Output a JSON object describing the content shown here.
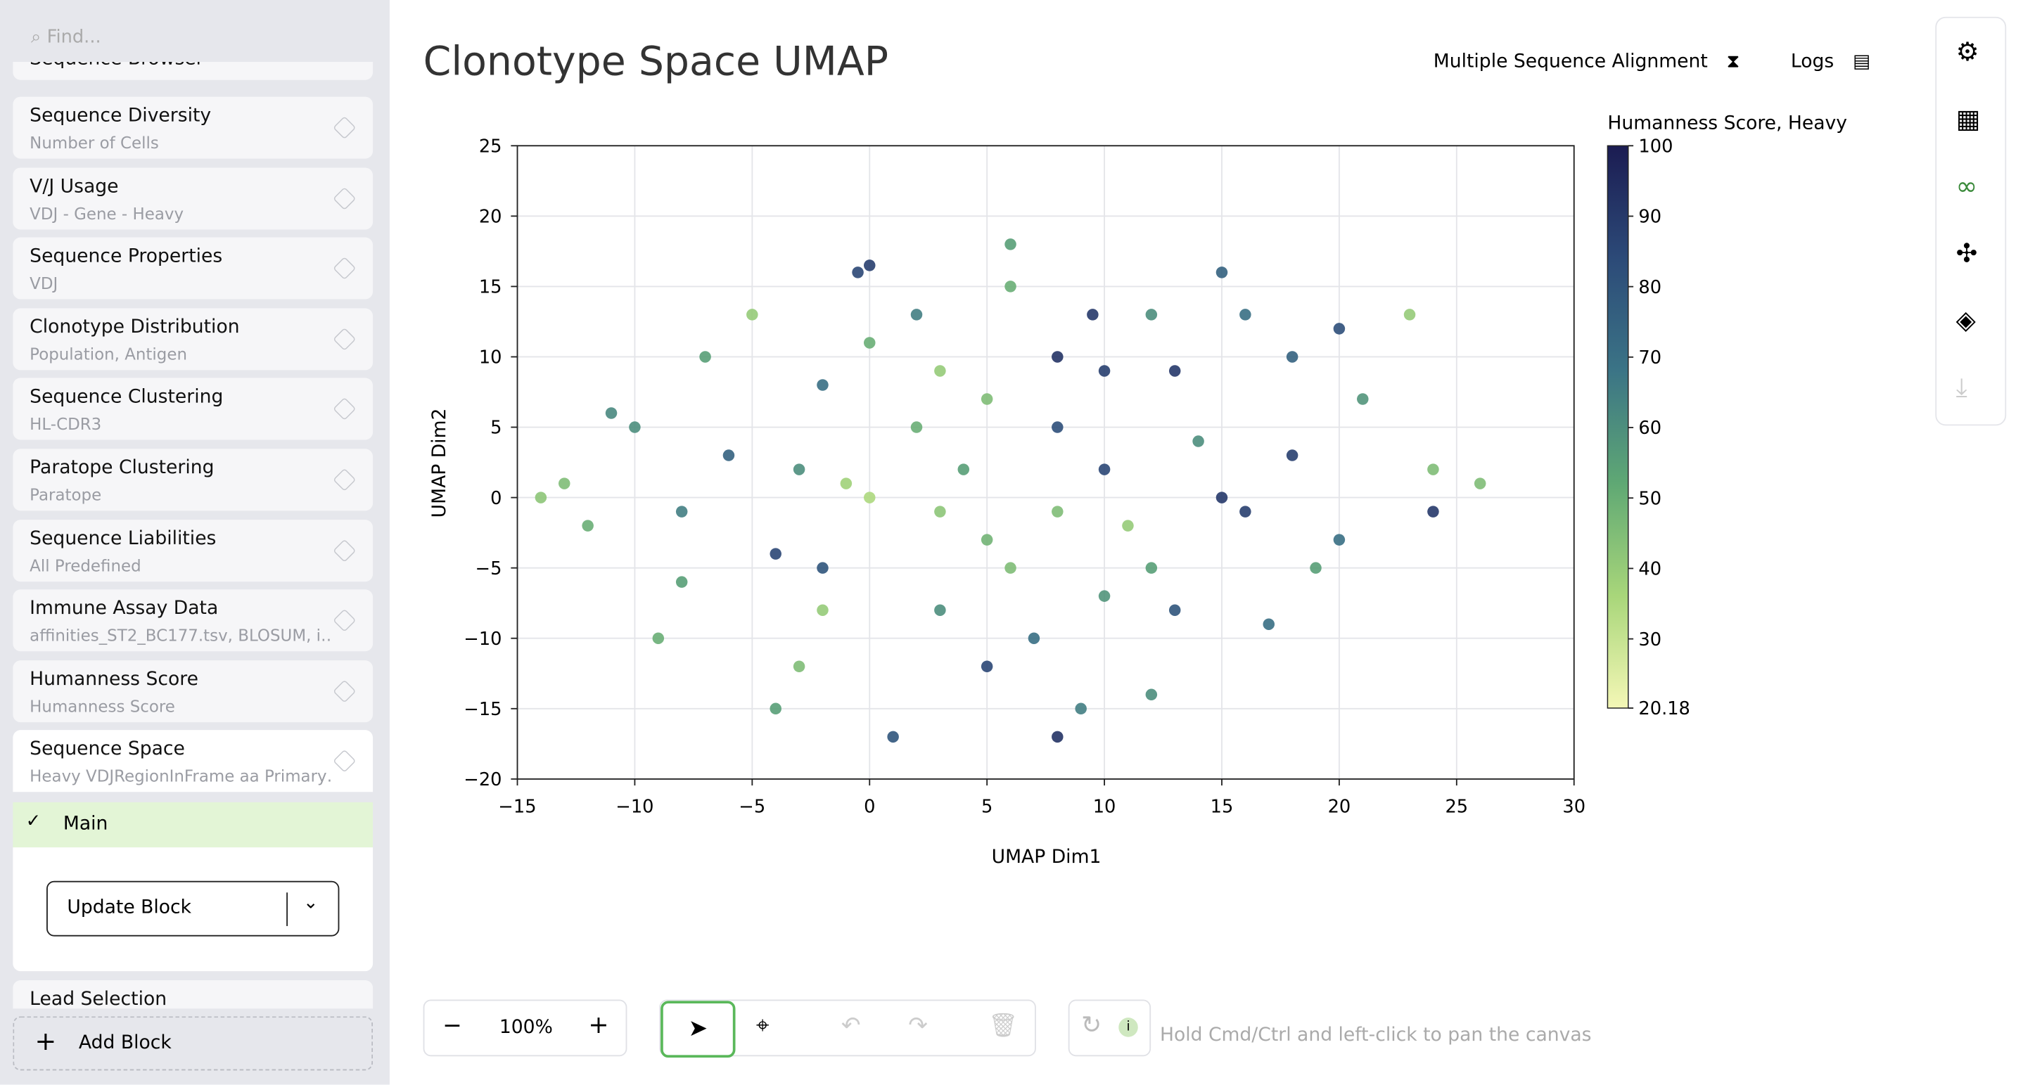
{
  "search_placeholder": "Find...",
  "sidebar": {
    "partial_top": "Sequence Browser",
    "blocks": [
      {
        "title": "Sequence Diversity",
        "subtitle": "Number of Cells"
      },
      {
        "title": "V/J Usage",
        "subtitle": "VDJ - Gene - Heavy"
      },
      {
        "title": "Sequence Properties",
        "subtitle": "VDJ"
      },
      {
        "title": "Clonotype Distribution",
        "subtitle": "Population, Antigen"
      },
      {
        "title": "Sequence Clustering",
        "subtitle": "HL-CDR3"
      },
      {
        "title": "Paratope Clustering",
        "subtitle": "Paratope"
      },
      {
        "title": "Sequence Liabilities",
        "subtitle": "All Predefined"
      },
      {
        "title": "Immune Assay Data",
        "subtitle": "affinities_ST2_BC177.tsv, BLOSUM, i…"
      },
      {
        "title": "Humanness Score",
        "subtitle": "Humanness Score"
      },
      {
        "title": "Sequence Space",
        "subtitle": "Heavy VDJRegionInFrame aa Primary…"
      }
    ],
    "selected_option": "Main",
    "update_button": "Update Block",
    "partial_bottom": "Lead Selection",
    "add_block": "Add Block"
  },
  "header": {
    "title": "Clonotype Space UMAP",
    "actions": [
      "Multiple Sequence Alignment",
      "Logs"
    ]
  },
  "chart_data": {
    "type": "scatter",
    "x_label": "UMAP Dim1",
    "y_label": "UMAP Dim2",
    "xlim": [
      -15,
      30
    ],
    "xticks": [
      {
        "value": -15,
        "label": "−15"
      },
      {
        "value": -10,
        "label": "−10"
      },
      {
        "value": -5,
        "label": "−5"
      },
      0,
      5,
      10,
      15,
      20,
      25,
      30
    ],
    "ylim": [
      -20,
      25
    ],
    "yticks": [
      {
        "value": -20,
        "label": "−20"
      },
      {
        "value": -15,
        "label": "−15"
      },
      {
        "value": -10,
        "label": "−10"
      },
      {
        "value": -5,
        "label": "−5"
      },
      0,
      5,
      10,
      15,
      20,
      25
    ],
    "grid": true,
    "colorbar": {
      "title": "Humanness Score, Heavy",
      "lim": [
        20.18,
        100
      ],
      "ticks": [
        20.18,
        30,
        40,
        50,
        60,
        70,
        80,
        90,
        100
      ],
      "colorscale": [
        "#f4f7b6",
        "#a8d67a",
        "#5fa874",
        "#3b7486",
        "#2c4a78",
        "#1b1c52"
      ]
    },
    "x": [
      -0.5,
      0,
      9.5,
      8,
      10,
      3,
      5,
      2,
      -1,
      0,
      5,
      8,
      10,
      15,
      16,
      12,
      -4,
      -2,
      3,
      7,
      5,
      12,
      -3,
      -8,
      -12,
      -13,
      -10,
      -7,
      -5,
      2,
      6,
      12,
      16,
      18,
      21,
      24,
      23,
      24,
      19,
      17,
      13,
      9,
      8,
      1,
      -4,
      -9,
      -11,
      -6,
      -2,
      4,
      6,
      11,
      14,
      18,
      20,
      -14,
      26,
      15,
      6,
      -2,
      10,
      3,
      8,
      13,
      -8,
      0,
      20,
      -3
    ],
    "y": [
      16,
      16.5,
      13,
      10,
      9,
      9,
      7,
      5,
      1,
      0,
      -3,
      -1,
      2,
      0,
      -1,
      -5,
      -4,
      -5,
      -8,
      -10,
      -12,
      -14,
      -12,
      -6,
      -2,
      1,
      5,
      10,
      13,
      13,
      15,
      13,
      13,
      10,
      7,
      2,
      13,
      -1,
      -5,
      -9,
      -8,
      -15,
      -17,
      -17,
      -15,
      -10,
      6,
      3,
      8,
      2,
      -5,
      -2,
      4,
      3,
      -3,
      0,
      1,
      16,
      18,
      -8,
      -7,
      -1,
      5,
      9,
      -1,
      11,
      12,
      2
    ],
    "color_values": [
      85,
      88,
      90,
      92,
      88,
      40,
      45,
      50,
      38,
      35,
      48,
      45,
      85,
      90,
      88,
      55,
      85,
      80,
      60,
      70,
      85,
      60,
      45,
      55,
      50,
      45,
      60,
      55,
      40,
      65,
      50,
      60,
      70,
      75,
      58,
      45,
      40,
      90,
      55,
      70,
      80,
      65,
      92,
      80,
      55,
      50,
      62,
      75,
      70,
      55,
      45,
      40,
      60,
      88,
      70,
      42,
      45,
      75,
      55,
      40,
      58,
      42,
      82,
      90,
      65,
      50,
      82,
      60
    ]
  },
  "toolbar": {
    "zoom": "100%",
    "hint": "Hold Cmd/Ctrl and left-click to pan the canvas"
  }
}
